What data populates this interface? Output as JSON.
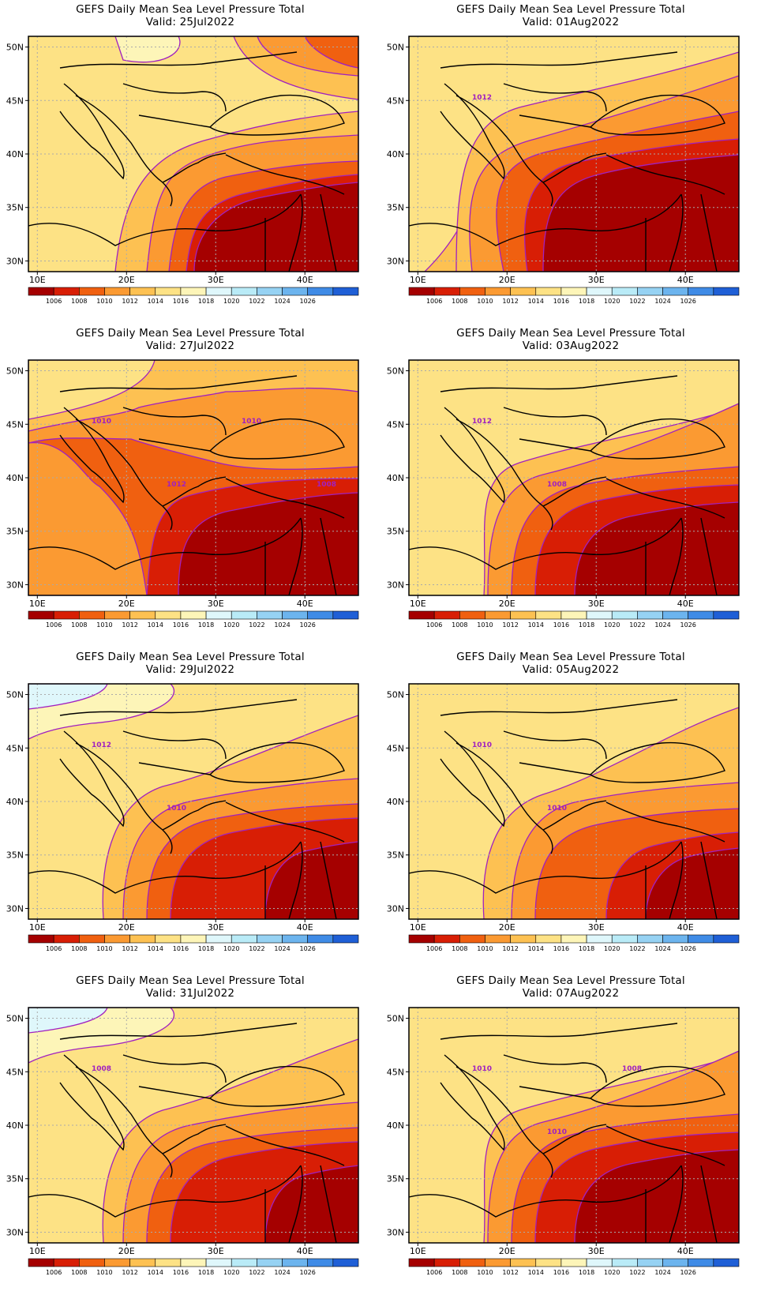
{
  "figure": {
    "panel_title": "GEFS Daily Mean Sea Level Pressure Total",
    "valid_prefix": "Valid:",
    "panels": [
      {
        "id": "p1",
        "date": "25Jul2022",
        "contour_labels": []
      },
      {
        "id": "p2",
        "date": "01Aug2022",
        "contour_labels": [
          "1012"
        ]
      },
      {
        "id": "p3",
        "date": "27Jul2022",
        "contour_labels": [
          "1010",
          "1012",
          "1010",
          "1008"
        ]
      },
      {
        "id": "p4",
        "date": "03Aug2022",
        "contour_labels": [
          "1012",
          "1008"
        ]
      },
      {
        "id": "p5",
        "date": "29Jul2022",
        "contour_labels": [
          "1012",
          "1010"
        ]
      },
      {
        "id": "p6",
        "date": "05Aug2022",
        "contour_labels": [
          "1010",
          "1010"
        ]
      },
      {
        "id": "p7",
        "date": "31Jul2022",
        "contour_labels": [
          "1008"
        ]
      },
      {
        "id": "p8",
        "date": "07Aug2022",
        "contour_labels": [
          "1010",
          "1010",
          "1008"
        ]
      }
    ]
  },
  "chart_data": {
    "type": "heatmap",
    "variable": "Mean Sea Level Pressure",
    "x_axis": {
      "ticks": [
        "10E",
        "20E",
        "30E",
        "40E"
      ],
      "range_deg": [
        9,
        46
      ]
    },
    "y_axis": {
      "ticks": [
        "30N",
        "35N",
        "40N",
        "45N",
        "50N"
      ],
      "range_deg": [
        29,
        51
      ]
    },
    "colorbar": {
      "labels": [
        "1006",
        "1008",
        "1010",
        "1012",
        "1014",
        "1016",
        "1018",
        "1020",
        "1022",
        "1024",
        "1026"
      ],
      "colors": [
        "#a50000",
        "#d81e05",
        "#f06010",
        "#fb9a32",
        "#fdc152",
        "#fde285",
        "#fdf5b8",
        "#dff7fb",
        "#b9ebf7",
        "#96d2f3",
        "#6cb4ee",
        "#3f8be6",
        "#1f5fd6"
      ]
    },
    "grid": true,
    "panels": [
      {
        "date": "25Jul2022",
        "pattern": "north-low-east"
      },
      {
        "date": "01Aug2022",
        "pattern": "deep-east"
      },
      {
        "date": "27Jul2022",
        "pattern": "broad-low"
      },
      {
        "date": "03Aug2022",
        "pattern": "mid"
      },
      {
        "date": "29Jul2022",
        "pattern": "north-high"
      },
      {
        "date": "05Aug2022",
        "pattern": "mid-weak"
      },
      {
        "date": "31Jul2022",
        "pattern": "north-high"
      },
      {
        "date": "07Aug2022",
        "pattern": "mid"
      }
    ]
  }
}
